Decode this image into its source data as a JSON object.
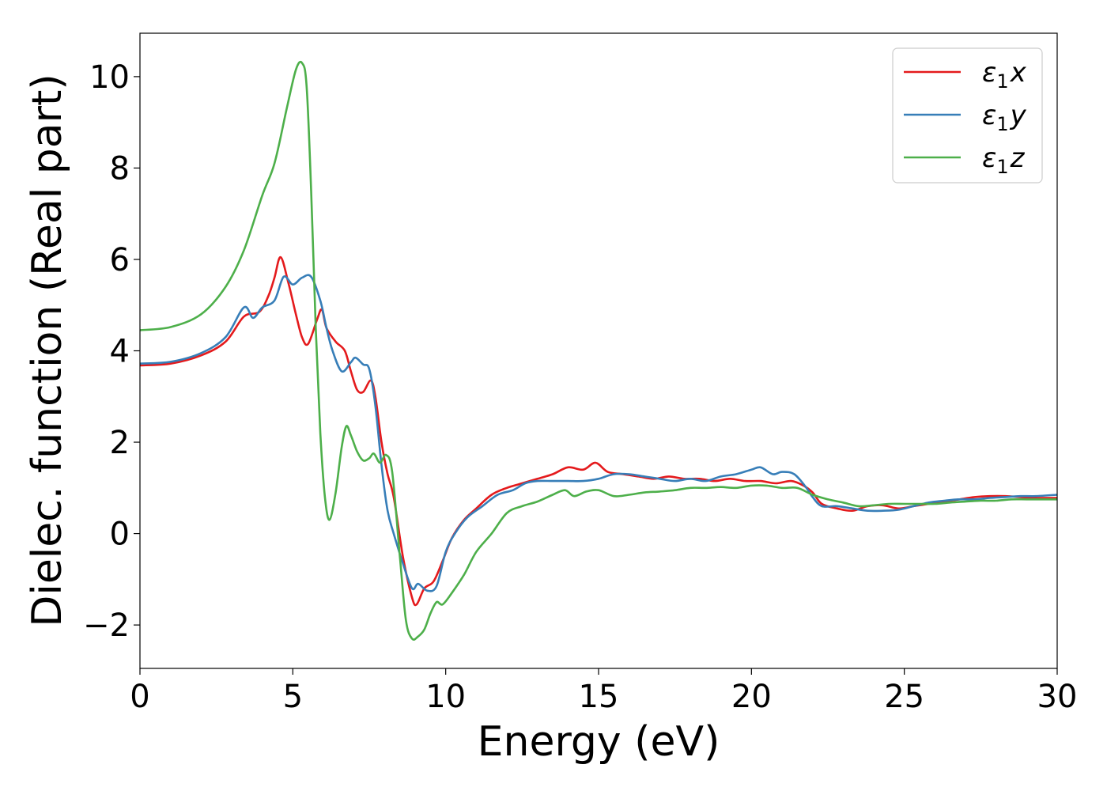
{
  "chart_data": {
    "type": "line",
    "xlabel": "Energy (eV)",
    "ylabel": "Dielec. function (Real part)",
    "xlim": [
      0,
      30
    ],
    "ylim": [
      -2.95,
      10.95
    ],
    "xticks": [
      0,
      5,
      10,
      15,
      20,
      25,
      30
    ],
    "xtick_labels": [
      "0",
      "5",
      "10",
      "15",
      "20",
      "25",
      "30"
    ],
    "yticks": [
      -2,
      0,
      2,
      4,
      6,
      8,
      10
    ],
    "ytick_labels": [
      "−2",
      "0",
      "2",
      "4",
      "6",
      "8",
      "10"
    ],
    "grid": false,
    "legend_position": "top-right",
    "series": [
      {
        "name": "ε1x",
        "legend_main": "ε",
        "legend_sub": "1",
        "legend_var": "x",
        "color": "#e41a1c",
        "points": [
          [
            0,
            3.68
          ],
          [
            1,
            3.72
          ],
          [
            2,
            3.9
          ],
          [
            2.8,
            4.2
          ],
          [
            3.4,
            4.75
          ],
          [
            3.9,
            4.85
          ],
          [
            4.2,
            5.2
          ],
          [
            4.4,
            5.6
          ],
          [
            4.6,
            6.05
          ],
          [
            4.85,
            5.5
          ],
          [
            5.1,
            4.8
          ],
          [
            5.3,
            4.3
          ],
          [
            5.5,
            4.15
          ],
          [
            5.8,
            4.7
          ],
          [
            5.95,
            4.9
          ],
          [
            6.1,
            4.5
          ],
          [
            6.4,
            4.2
          ],
          [
            6.7,
            4.0
          ],
          [
            6.9,
            3.55
          ],
          [
            7.1,
            3.15
          ],
          [
            7.3,
            3.1
          ],
          [
            7.55,
            3.35
          ],
          [
            7.7,
            3.0
          ],
          [
            7.9,
            2.0
          ],
          [
            8.1,
            1.3
          ],
          [
            8.3,
            0.8
          ],
          [
            8.6,
            -0.5
          ],
          [
            8.9,
            -1.4
          ],
          [
            9.05,
            -1.55
          ],
          [
            9.3,
            -1.2
          ],
          [
            9.6,
            -1.05
          ],
          [
            9.9,
            -0.6
          ],
          [
            10.2,
            -0.1
          ],
          [
            10.6,
            0.3
          ],
          [
            11.0,
            0.55
          ],
          [
            11.5,
            0.85
          ],
          [
            12.0,
            1.0
          ],
          [
            12.5,
            1.1
          ],
          [
            13.0,
            1.2
          ],
          [
            13.5,
            1.3
          ],
          [
            14.0,
            1.45
          ],
          [
            14.5,
            1.4
          ],
          [
            14.9,
            1.55
          ],
          [
            15.3,
            1.35
          ],
          [
            15.8,
            1.3
          ],
          [
            16.3,
            1.25
          ],
          [
            16.8,
            1.2
          ],
          [
            17.3,
            1.25
          ],
          [
            17.8,
            1.2
          ],
          [
            18.3,
            1.2
          ],
          [
            18.8,
            1.15
          ],
          [
            19.3,
            1.2
          ],
          [
            19.8,
            1.15
          ],
          [
            20.3,
            1.15
          ],
          [
            20.8,
            1.1
          ],
          [
            21.3,
            1.15
          ],
          [
            21.7,
            1.05
          ],
          [
            22.0,
            0.9
          ],
          [
            22.3,
            0.65
          ],
          [
            22.8,
            0.55
          ],
          [
            23.3,
            0.5
          ],
          [
            23.8,
            0.6
          ],
          [
            24.3,
            0.62
          ],
          [
            24.8,
            0.55
          ],
          [
            25.3,
            0.6
          ],
          [
            25.8,
            0.65
          ],
          [
            26.3,
            0.7
          ],
          [
            26.8,
            0.75
          ],
          [
            27.3,
            0.8
          ],
          [
            27.8,
            0.82
          ],
          [
            28.3,
            0.82
          ],
          [
            28.8,
            0.8
          ],
          [
            29.3,
            0.78
          ],
          [
            30,
            0.78
          ]
        ]
      },
      {
        "name": "ε1y",
        "legend_main": "ε",
        "legend_sub": "1",
        "legend_var": "y",
        "color": "#377eb8",
        "points": [
          [
            0,
            3.72
          ],
          [
            1,
            3.76
          ],
          [
            2,
            3.95
          ],
          [
            2.8,
            4.3
          ],
          [
            3.4,
            4.95
          ],
          [
            3.7,
            4.72
          ],
          [
            4.0,
            4.95
          ],
          [
            4.4,
            5.1
          ],
          [
            4.7,
            5.62
          ],
          [
            5.0,
            5.45
          ],
          [
            5.3,
            5.6
          ],
          [
            5.6,
            5.62
          ],
          [
            5.9,
            5.1
          ],
          [
            6.1,
            4.5
          ],
          [
            6.3,
            4.0
          ],
          [
            6.6,
            3.55
          ],
          [
            6.9,
            3.75
          ],
          [
            7.05,
            3.85
          ],
          [
            7.3,
            3.7
          ],
          [
            7.5,
            3.6
          ],
          [
            7.7,
            2.8
          ],
          [
            7.9,
            1.5
          ],
          [
            8.1,
            0.5
          ],
          [
            8.3,
            0.0
          ],
          [
            8.6,
            -0.65
          ],
          [
            8.9,
            -1.2
          ],
          [
            9.1,
            -1.1
          ],
          [
            9.4,
            -1.25
          ],
          [
            9.7,
            -1.15
          ],
          [
            10.0,
            -0.4
          ],
          [
            10.3,
            0.0
          ],
          [
            10.7,
            0.35
          ],
          [
            11.2,
            0.6
          ],
          [
            11.7,
            0.85
          ],
          [
            12.2,
            0.95
          ],
          [
            12.6,
            1.1
          ],
          [
            13.0,
            1.15
          ],
          [
            13.5,
            1.15
          ],
          [
            14.0,
            1.15
          ],
          [
            14.5,
            1.15
          ],
          [
            15.0,
            1.2
          ],
          [
            15.5,
            1.3
          ],
          [
            16.0,
            1.3
          ],
          [
            16.5,
            1.25
          ],
          [
            17.0,
            1.2
          ],
          [
            17.5,
            1.15
          ],
          [
            18.0,
            1.2
          ],
          [
            18.5,
            1.15
          ],
          [
            19.0,
            1.25
          ],
          [
            19.5,
            1.3
          ],
          [
            20.0,
            1.4
          ],
          [
            20.3,
            1.45
          ],
          [
            20.7,
            1.3
          ],
          [
            21.0,
            1.35
          ],
          [
            21.4,
            1.3
          ],
          [
            21.8,
            1.0
          ],
          [
            22.0,
            0.8
          ],
          [
            22.3,
            0.6
          ],
          [
            22.8,
            0.6
          ],
          [
            23.3,
            0.55
          ],
          [
            23.8,
            0.5
          ],
          [
            24.3,
            0.5
          ],
          [
            24.8,
            0.52
          ],
          [
            25.3,
            0.6
          ],
          [
            25.8,
            0.68
          ],
          [
            26.3,
            0.72
          ],
          [
            26.8,
            0.75
          ],
          [
            27.3,
            0.75
          ],
          [
            27.8,
            0.78
          ],
          [
            28.3,
            0.8
          ],
          [
            28.8,
            0.82
          ],
          [
            29.3,
            0.82
          ],
          [
            30,
            0.85
          ]
        ]
      },
      {
        "name": "ε1z",
        "legend_main": "ε",
        "legend_sub": "1",
        "legend_var": "z",
        "color": "#4daf4a",
        "points": [
          [
            0,
            4.45
          ],
          [
            1,
            4.52
          ],
          [
            2,
            4.8
          ],
          [
            2.8,
            5.4
          ],
          [
            3.4,
            6.2
          ],
          [
            4.0,
            7.4
          ],
          [
            4.4,
            8.1
          ],
          [
            4.8,
            9.3
          ],
          [
            5.1,
            10.15
          ],
          [
            5.3,
            10.3
          ],
          [
            5.45,
            9.8
          ],
          [
            5.6,
            7.5
          ],
          [
            5.75,
            4.5
          ],
          [
            5.9,
            2.2
          ],
          [
            6.05,
            0.8
          ],
          [
            6.2,
            0.3
          ],
          [
            6.4,
            0.9
          ],
          [
            6.6,
            1.9
          ],
          [
            6.75,
            2.35
          ],
          [
            6.9,
            2.15
          ],
          [
            7.1,
            1.8
          ],
          [
            7.3,
            1.6
          ],
          [
            7.5,
            1.65
          ],
          [
            7.65,
            1.75
          ],
          [
            7.85,
            1.55
          ],
          [
            8.05,
            1.72
          ],
          [
            8.25,
            1.35
          ],
          [
            8.5,
            -0.5
          ],
          [
            8.7,
            -1.9
          ],
          [
            8.9,
            -2.3
          ],
          [
            9.1,
            -2.25
          ],
          [
            9.3,
            -2.1
          ],
          [
            9.5,
            -1.75
          ],
          [
            9.7,
            -1.5
          ],
          [
            9.9,
            -1.55
          ],
          [
            10.2,
            -1.3
          ],
          [
            10.6,
            -0.9
          ],
          [
            11.0,
            -0.4
          ],
          [
            11.5,
            0.0
          ],
          [
            12.0,
            0.45
          ],
          [
            12.5,
            0.6
          ],
          [
            13.0,
            0.7
          ],
          [
            13.5,
            0.85
          ],
          [
            13.9,
            0.95
          ],
          [
            14.2,
            0.82
          ],
          [
            14.6,
            0.92
          ],
          [
            15.0,
            0.95
          ],
          [
            15.5,
            0.82
          ],
          [
            16.0,
            0.85
          ],
          [
            16.5,
            0.9
          ],
          [
            17.0,
            0.92
          ],
          [
            17.5,
            0.95
          ],
          [
            18.0,
            1.0
          ],
          [
            18.5,
            1.0
          ],
          [
            19.0,
            1.02
          ],
          [
            19.5,
            1.0
          ],
          [
            20.0,
            1.05
          ],
          [
            20.5,
            1.05
          ],
          [
            21.0,
            1.0
          ],
          [
            21.5,
            1.0
          ],
          [
            22.0,
            0.85
          ],
          [
            22.5,
            0.75
          ],
          [
            23.0,
            0.68
          ],
          [
            23.5,
            0.6
          ],
          [
            24.0,
            0.62
          ],
          [
            24.5,
            0.65
          ],
          [
            25.0,
            0.65
          ],
          [
            25.5,
            0.65
          ],
          [
            26.0,
            0.65
          ],
          [
            26.5,
            0.68
          ],
          [
            27.0,
            0.7
          ],
          [
            27.5,
            0.72
          ],
          [
            28.0,
            0.72
          ],
          [
            28.5,
            0.75
          ],
          [
            29.0,
            0.75
          ],
          [
            29.5,
            0.75
          ],
          [
            30,
            0.75
          ]
        ]
      }
    ]
  }
}
